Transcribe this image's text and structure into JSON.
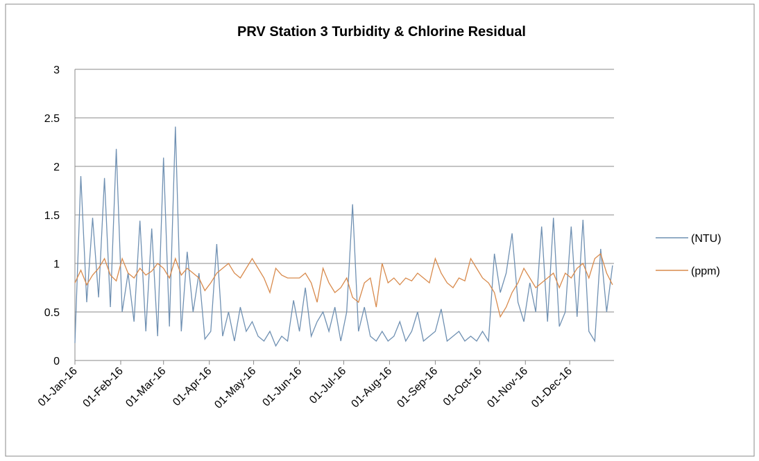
{
  "chart_data": {
    "type": "line",
    "title": "PRV Station 3 Turbidity & Chlorine Residual",
    "x": [
      "2016-01-01",
      "2016-01-05",
      "2016-01-09",
      "2016-01-13",
      "2016-01-17",
      "2016-01-21",
      "2016-01-25",
      "2016-01-29",
      "2016-02-02",
      "2016-02-06",
      "2016-02-10",
      "2016-02-14",
      "2016-02-18",
      "2016-02-22",
      "2016-02-26",
      "2016-03-01",
      "2016-03-05",
      "2016-03-09",
      "2016-03-13",
      "2016-03-17",
      "2016-03-21",
      "2016-03-25",
      "2016-03-29",
      "2016-04-02",
      "2016-04-06",
      "2016-04-10",
      "2016-04-14",
      "2016-04-18",
      "2016-04-22",
      "2016-04-26",
      "2016-04-30",
      "2016-05-04",
      "2016-05-08",
      "2016-05-12",
      "2016-05-16",
      "2016-05-20",
      "2016-05-24",
      "2016-05-28",
      "2016-06-01",
      "2016-06-05",
      "2016-06-09",
      "2016-06-13",
      "2016-06-17",
      "2016-06-21",
      "2016-06-25",
      "2016-06-29",
      "2016-07-03",
      "2016-07-07",
      "2016-07-11",
      "2016-07-15",
      "2016-07-19",
      "2016-07-23",
      "2016-07-27",
      "2016-07-31",
      "2016-08-04",
      "2016-08-08",
      "2016-08-12",
      "2016-08-16",
      "2016-08-20",
      "2016-08-24",
      "2016-08-28",
      "2016-09-01",
      "2016-09-05",
      "2016-09-09",
      "2016-09-13",
      "2016-09-17",
      "2016-09-21",
      "2016-09-25",
      "2016-09-29",
      "2016-10-03",
      "2016-10-07",
      "2016-10-11",
      "2016-10-15",
      "2016-10-19",
      "2016-10-23",
      "2016-10-27",
      "2016-10-31",
      "2016-11-04",
      "2016-11-08",
      "2016-11-12",
      "2016-11-16",
      "2016-11-20",
      "2016-11-24",
      "2016-11-28",
      "2016-12-02",
      "2016-12-06",
      "2016-12-10",
      "2016-12-14",
      "2016-12-18",
      "2016-12-22",
      "2016-12-26",
      "2016-12-30"
    ],
    "series": [
      {
        "name": "(NTU)",
        "color": "#6f90b2",
        "values": [
          0.18,
          1.9,
          0.6,
          1.47,
          0.65,
          1.88,
          0.55,
          2.18,
          0.5,
          0.9,
          0.4,
          1.44,
          0.3,
          1.36,
          0.25,
          2.09,
          0.35,
          2.41,
          0.3,
          1.12,
          0.5,
          0.9,
          0.22,
          0.3,
          1.2,
          0.25,
          0.5,
          0.2,
          0.55,
          0.3,
          0.4,
          0.25,
          0.2,
          0.3,
          0.15,
          0.25,
          0.2,
          0.62,
          0.3,
          0.75,
          0.25,
          0.4,
          0.5,
          0.3,
          0.55,
          0.2,
          0.5,
          1.61,
          0.3,
          0.55,
          0.25,
          0.2,
          0.3,
          0.2,
          0.25,
          0.4,
          0.2,
          0.3,
          0.5,
          0.2,
          0.25,
          0.3,
          0.53,
          0.2,
          0.25,
          0.3,
          0.2,
          0.25,
          0.2,
          0.3,
          0.2,
          1.1,
          0.7,
          0.9,
          1.31,
          0.6,
          0.4,
          0.8,
          0.5,
          1.38,
          0.4,
          1.47,
          0.35,
          0.5,
          1.38,
          0.45,
          1.45,
          0.3,
          0.2,
          1.15,
          0.5,
          0.98
        ]
      },
      {
        "name": "(ppm)",
        "color": "#d88a4c",
        "values": [
          0.8,
          0.93,
          0.78,
          0.88,
          0.95,
          1.05,
          0.88,
          0.82,
          1.05,
          0.9,
          0.85,
          0.95,
          0.88,
          0.92,
          1.0,
          0.95,
          0.85,
          1.05,
          0.88,
          0.95,
          0.9,
          0.85,
          0.72,
          0.8,
          0.9,
          0.95,
          1.0,
          0.9,
          0.85,
          0.95,
          1.05,
          0.95,
          0.85,
          0.7,
          0.95,
          0.88,
          0.85,
          0.85,
          0.85,
          0.9,
          0.8,
          0.6,
          0.95,
          0.8,
          0.7,
          0.75,
          0.85,
          0.65,
          0.6,
          0.8,
          0.85,
          0.55,
          1.0,
          0.8,
          0.85,
          0.78,
          0.85,
          0.82,
          0.9,
          0.85,
          0.8,
          1.05,
          0.9,
          0.8,
          0.75,
          0.85,
          0.82,
          1.05,
          0.95,
          0.85,
          0.8,
          0.7,
          0.45,
          0.55,
          0.7,
          0.8,
          0.95,
          0.85,
          0.75,
          0.8,
          0.85,
          0.9,
          0.75,
          0.9,
          0.85,
          0.95,
          1.0,
          0.85,
          1.05,
          1.1,
          0.9,
          0.78
        ]
      }
    ],
    "xlim": [
      "2016-01-01",
      "2016-12-31"
    ],
    "xticks": [
      {
        "value": "2016-01-01",
        "label": "01-Jan-16"
      },
      {
        "value": "2016-02-01",
        "label": "01-Feb-16"
      },
      {
        "value": "2016-03-01",
        "label": "01-Mar-16"
      },
      {
        "value": "2016-04-01",
        "label": "01-Apr-16"
      },
      {
        "value": "2016-05-01",
        "label": "01-May-16"
      },
      {
        "value": "2016-06-01",
        "label": "01-Jun-16"
      },
      {
        "value": "2016-07-01",
        "label": "01-Jul-16"
      },
      {
        "value": "2016-08-01",
        "label": "01-Aug-16"
      },
      {
        "value": "2016-09-01",
        "label": "01-Sep-16"
      },
      {
        "value": "2016-10-01",
        "label": "01-Oct-16"
      },
      {
        "value": "2016-11-01",
        "label": "01-Nov-16"
      },
      {
        "value": "2016-12-01",
        "label": "01-Dec-16"
      }
    ],
    "ylim": [
      0,
      3
    ],
    "yticks": [
      0,
      0.5,
      1,
      1.5,
      2,
      2.5,
      3
    ],
    "grid": true,
    "legend": "right"
  }
}
